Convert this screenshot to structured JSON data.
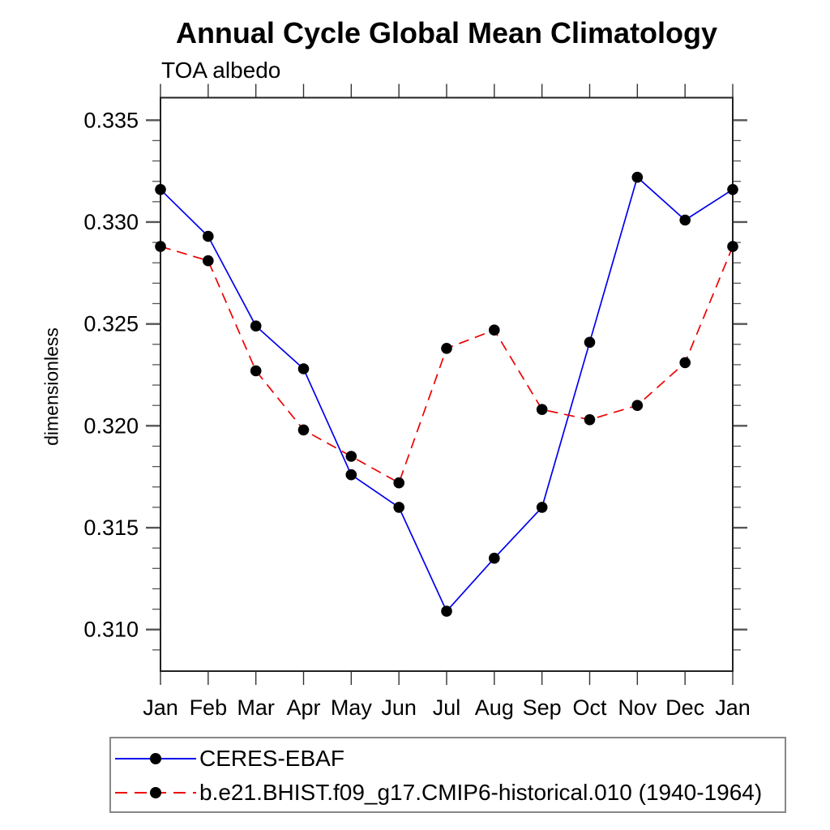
{
  "title": "Annual Cycle Global Mean Climatology",
  "subtitle": "TOA albedo",
  "y_axis": {
    "label": "dimensionless",
    "tick_labels": [
      "0.310",
      "0.315",
      "0.320",
      "0.325",
      "0.330",
      "0.335"
    ],
    "tick_values": [
      0.31,
      0.315,
      0.32,
      0.325,
      0.33,
      0.335
    ]
  },
  "x_axis": {
    "tick_labels": [
      "Jan",
      "Feb",
      "Mar",
      "Apr",
      "May",
      "Jun",
      "Jul",
      "Aug",
      "Sep",
      "Oct",
      "Nov",
      "Dec",
      "Jan"
    ]
  },
  "legend": {
    "items": [
      {
        "label": "CERES-EBAF",
        "color": "#0000ee",
        "style": "solid",
        "marker": "filled-circle"
      },
      {
        "label": "b.e21.BHIST.f09_g17.CMIP6-historical.010 (1940-1964)",
        "color": "#ee0000",
        "style": "dashed",
        "marker": "filled-circle"
      }
    ]
  },
  "chart_data": {
    "type": "line",
    "title": "Annual Cycle Global Mean Climatology",
    "subtitle": "TOA albedo",
    "xlabel": "",
    "ylabel": "dimensionless",
    "ylim": [
      0.308,
      0.336
    ],
    "ytick_major_interval": 0.005,
    "ytick_minor_interval": 0.001,
    "grid": false,
    "legend_position": "bottom-left-box",
    "categories": [
      "Jan",
      "Feb",
      "Mar",
      "Apr",
      "May",
      "Jun",
      "Jul",
      "Aug",
      "Sep",
      "Oct",
      "Nov",
      "Dec",
      "Jan"
    ],
    "series": [
      {
        "name": "CERES-EBAF",
        "color": "#0000ee",
        "line_style": "solid",
        "marker": "filled-circle",
        "values": [
          0.3316,
          0.3293,
          0.3249,
          0.3228,
          0.3176,
          0.316,
          0.3109,
          0.3135,
          0.316,
          0.3241,
          0.3322,
          0.3301,
          0.3316
        ]
      },
      {
        "name": "b.e21.BHIST.f09_g17.CMIP6-historical.010 (1940-1964)",
        "color": "#ee0000",
        "line_style": "dashed",
        "marker": "filled-circle",
        "values": [
          0.3288,
          0.3281,
          0.3227,
          0.3198,
          0.3185,
          0.3172,
          0.3238,
          0.3247,
          0.3208,
          0.3203,
          0.321,
          0.3231,
          0.3288
        ]
      }
    ]
  }
}
